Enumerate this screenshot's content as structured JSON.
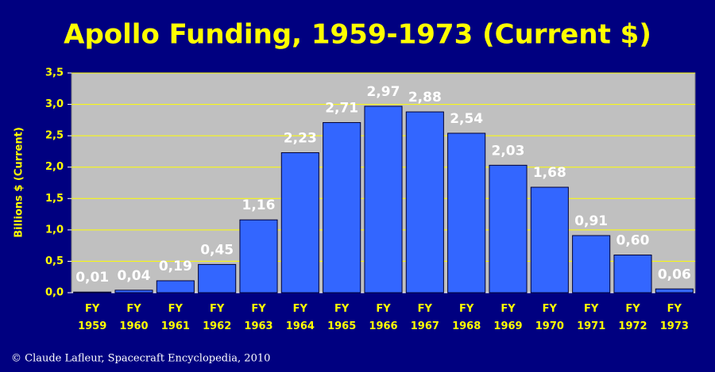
{
  "chart_data": {
    "type": "bar",
    "title": "Apollo Funding, 1959-1973 (Current $)",
    "ylabel": "Billions $ (Current)",
    "footer": "© Claude Lafleur, Spacecraft Encyclopedia, 2010",
    "categories": [
      "FY 1959",
      "FY 1960",
      "FY 1961",
      "FY 1962",
      "FY 1963",
      "FY 1964",
      "FY 1965",
      "FY 1966",
      "FY 1967",
      "FY 1968",
      "FY 1969",
      "FY 1970",
      "FY 1971",
      "FY 1972",
      "FY 1973"
    ],
    "values": [
      0.01,
      0.04,
      0.19,
      0.45,
      1.16,
      2.23,
      2.71,
      2.97,
      2.88,
      2.54,
      2.03,
      1.68,
      0.91,
      0.6,
      0.06
    ],
    "value_labels": [
      "0,01",
      "0,04",
      "0,19",
      "0,45",
      "1,16",
      "2,23",
      "2,71",
      "2,97",
      "2,88",
      "2,54",
      "2,03",
      "1,68",
      "0,91",
      "0,60",
      "0,06"
    ],
    "color": "#3366ff",
    "ylim": [
      0,
      3.5
    ],
    "yticks": [
      {
        "value": 0,
        "label": "0,0"
      },
      {
        "value": 0.5,
        "label": "0,5"
      },
      {
        "value": 1,
        "label": "1,0"
      },
      {
        "value": 1.5,
        "label": "1,5"
      },
      {
        "value": 2,
        "label": "2,0"
      },
      {
        "value": 2.5,
        "label": "2,5"
      },
      {
        "value": 3,
        "label": "3,0"
      },
      {
        "value": 3.5,
        "label": "3,5"
      }
    ],
    "grid": true
  }
}
